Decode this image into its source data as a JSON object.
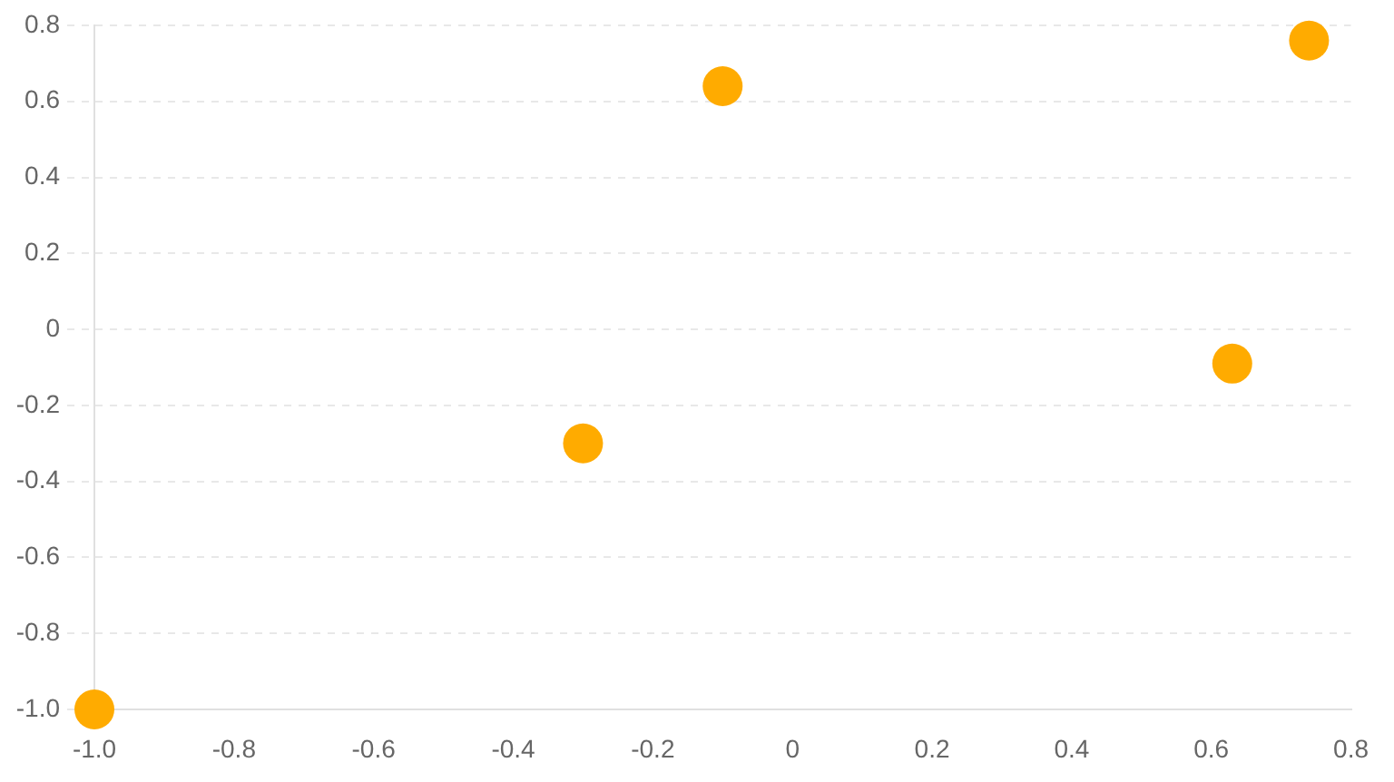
{
  "chart_data": {
    "type": "scatter",
    "x": [
      -1,
      -0.3,
      -0.1,
      0.63,
      0.74
    ],
    "values": [
      -1,
      -0.3,
      0.64,
      -0.09,
      0.76
    ],
    "color": "#ffab00",
    "marker": "circle",
    "xlim": [
      -1,
      0.8
    ],
    "ylim": [
      -1,
      0.8
    ],
    "xticks": [
      {
        "value": -1,
        "label": "-1.0"
      },
      -0.8,
      -0.6,
      -0.4,
      -0.2,
      0,
      0.2,
      0.4,
      0.6,
      0.8
    ],
    "yticks": [
      {
        "value": -1,
        "label": "-1.0"
      },
      -0.8,
      -0.6,
      -0.4,
      -0.2,
      0,
      0.2,
      0.4,
      0.6,
      0.8
    ],
    "grid": "y"
  }
}
